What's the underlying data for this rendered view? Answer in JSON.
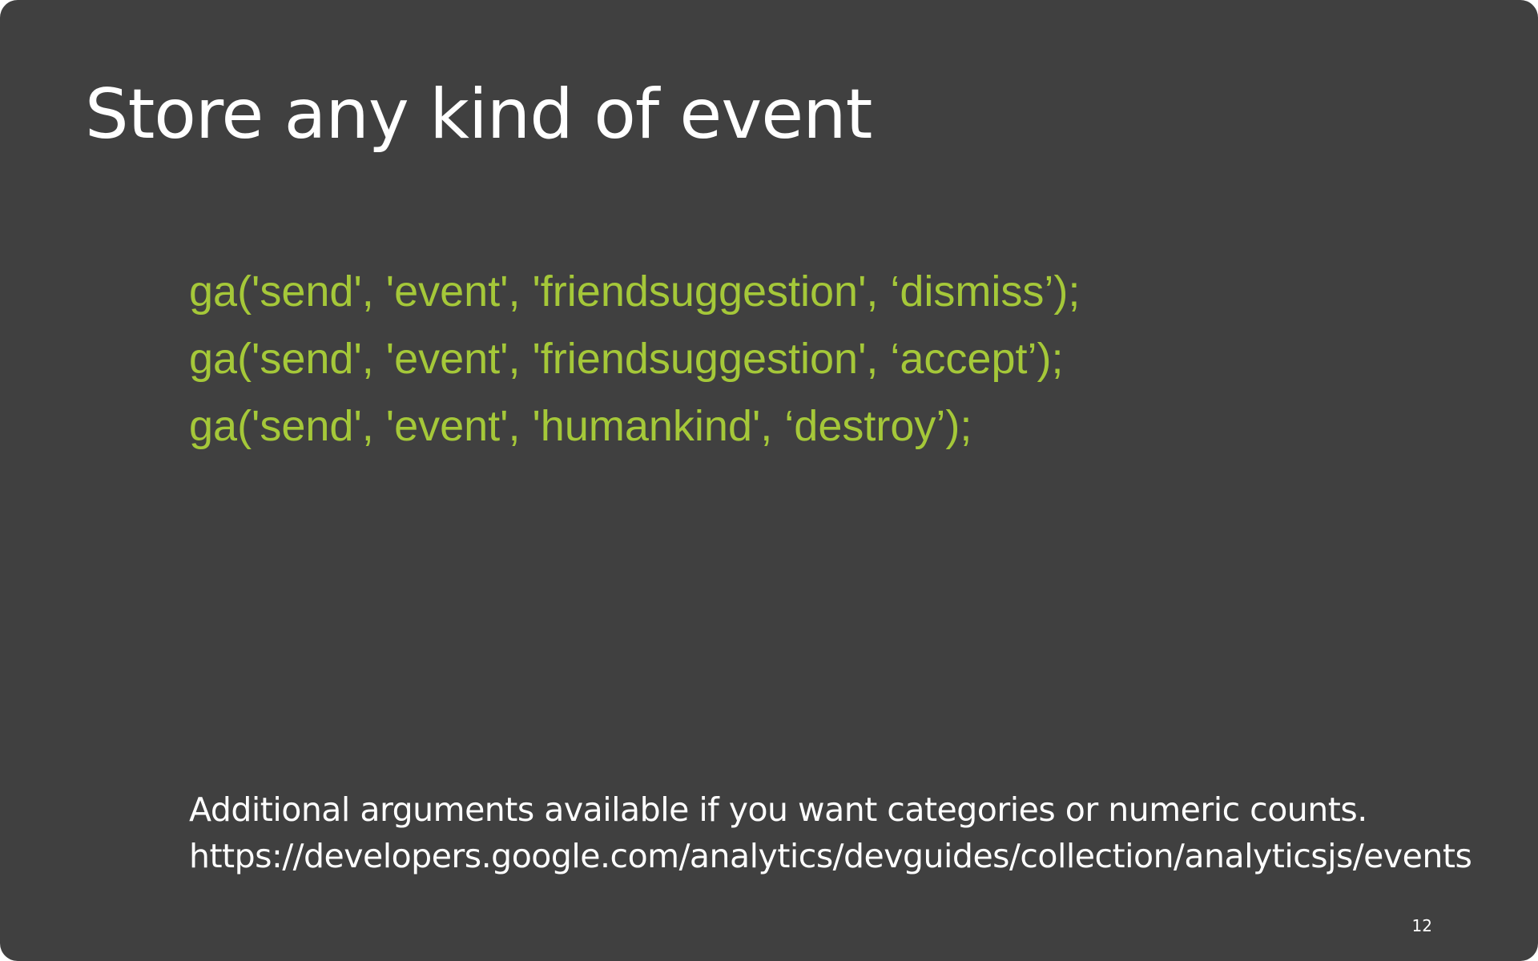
{
  "slide": {
    "title": "Store any kind of event",
    "code_lines": [
      "ga('send', 'event', 'friendsuggestion', ‘dismiss’);",
      "ga('send', 'event', 'friendsuggestion', ‘accept’);",
      "ga('send', 'event', 'humankind', ‘destroy’);"
    ],
    "footer": {
      "note": "Additional arguments available if you want categories or numeric counts.",
      "url": "https://developers.google.com/analytics/devguides/collection/analyticsjs/events"
    },
    "page_number": "12"
  },
  "colors": {
    "background": "#404040",
    "title_text": "#ffffff",
    "code_text": "#a5c839",
    "footer_text": "#ffffff"
  }
}
